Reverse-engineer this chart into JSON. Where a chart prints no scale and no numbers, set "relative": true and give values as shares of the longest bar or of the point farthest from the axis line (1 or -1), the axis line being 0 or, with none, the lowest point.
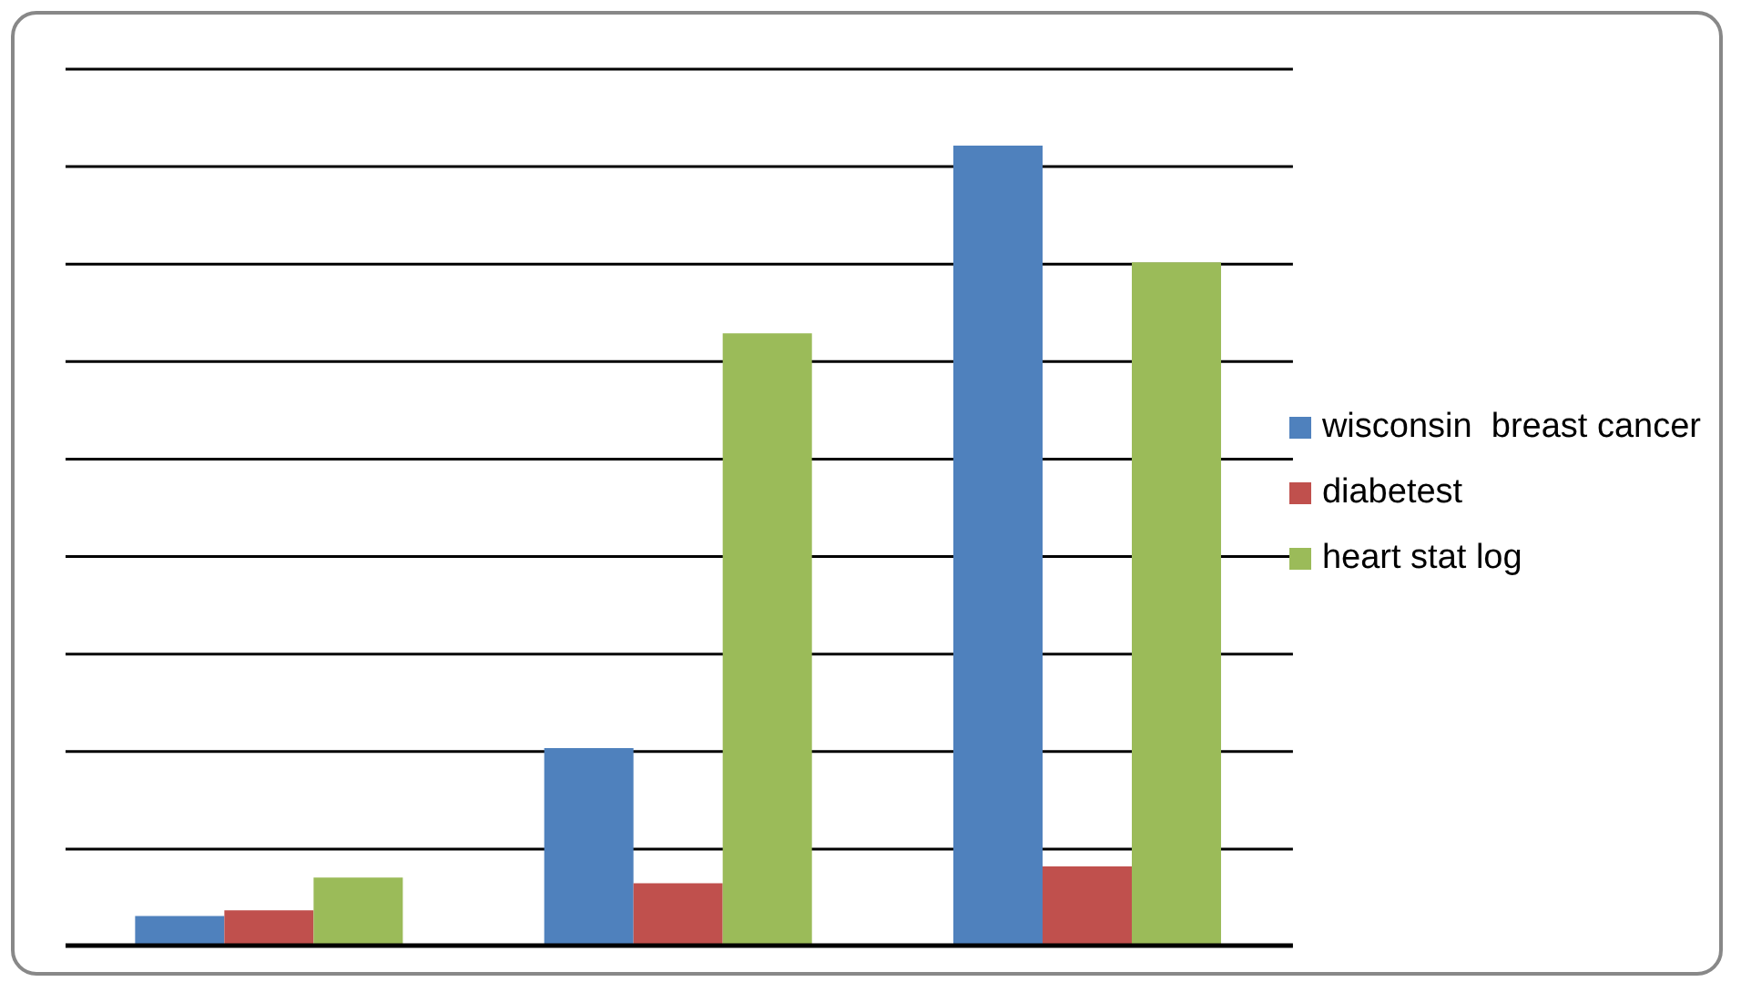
{
  "chart_data": {
    "type": "bar",
    "relative": true,
    "categories": [
      null,
      null,
      null
    ],
    "series": [
      {
        "name": "wisconsin  breast cancer",
        "color": "#4f81bd",
        "values": [
          0.036,
          0.246,
          1
        ]
      },
      {
        "name": "diabetest",
        "color": "#c0504d",
        "values": [
          0.043,
          0.077,
          0.098
        ]
      },
      {
        "name": "heart stat log",
        "color": "#9bbb59",
        "values": [
          0.084,
          0.765,
          0.854
        ]
      }
    ],
    "grid": "y",
    "legend": "right"
  }
}
